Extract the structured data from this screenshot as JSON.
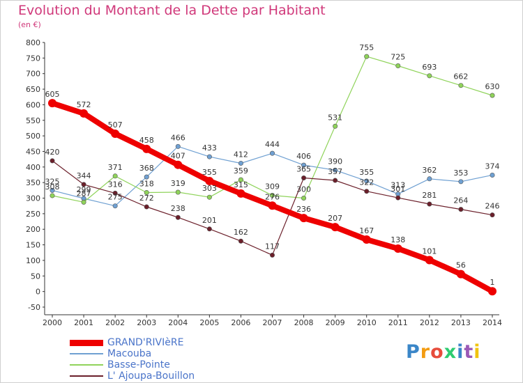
{
  "title": "Evolution du Montant de la Dette par Habitant",
  "unit_label": "(en €)",
  "logo": {
    "text": "Proxiti",
    "colors": [
      "#3a86c8",
      "#f39c12",
      "#e74c3c",
      "#2ecc71",
      "#3a86c8",
      "#9b59b6",
      "#f1c40f"
    ]
  },
  "chart_data": {
    "type": "line",
    "title": "Evolution du Montant de la Dette par Habitant",
    "ylabel": "(en €)",
    "xlabel": "",
    "x": [
      "2000",
      "2001",
      "2002",
      "2003",
      "2004",
      "2005",
      "2006",
      "2007",
      "2008",
      "2009",
      "2010",
      "2011",
      "2012",
      "2013",
      "2014"
    ],
    "ylim": [
      -50,
      800
    ],
    "yticks": [
      -50,
      0,
      50,
      100,
      150,
      200,
      250,
      300,
      350,
      400,
      450,
      500,
      550,
      600,
      650,
      700,
      750,
      800
    ],
    "grid": false,
    "legend_position": "bottom-left",
    "series": [
      {
        "name": "GRAND'RIVIèRE",
        "color": "#ee0000",
        "values": [
          605,
          572,
          507,
          458,
          407,
          355,
          315,
          276,
          236,
          207,
          167,
          138,
          101,
          56,
          1
        ]
      },
      {
        "name": "Macouba",
        "color": "#6fa0d2",
        "values": [
          325,
          299,
          275,
          368,
          466,
          433,
          412,
          444,
          406,
          390,
          355,
          313,
          362,
          353,
          374
        ]
      },
      {
        "name": "Basse-Pointe",
        "color": "#8fd35a",
        "values": [
          308,
          287,
          371,
          318,
          319,
          303,
          359,
          309,
          300,
          531,
          755,
          725,
          693,
          662,
          630
        ]
      },
      {
        "name": "L' Ajoupa-Bouillon",
        "color": "#6b1f2a",
        "values": [
          420,
          344,
          316,
          272,
          238,
          201,
          162,
          117,
          365,
          357,
          322,
          301,
          281,
          264,
          246
        ]
      }
    ],
    "data_labels": [
      [
        "605",
        "572",
        "507",
        "458",
        "407",
        "355",
        "315",
        "276",
        "236",
        "207",
        "167",
        "138",
        "101",
        "56",
        "1"
      ],
      [
        "325",
        "299",
        "275",
        "368",
        "466",
        "433",
        "412",
        "444",
        "406",
        "390",
        "355",
        "313",
        "362",
        "353",
        "374"
      ],
      [
        "308",
        "287",
        "371",
        "318",
        "319",
        "303",
        "359",
        "309",
        "300",
        "531",
        "755",
        "725",
        "693",
        "662",
        "630"
      ],
      [
        "420",
        "344",
        "316",
        "272",
        "238",
        "201",
        "162",
        "117",
        "365",
        "357",
        "322",
        "301",
        "281",
        "264",
        "246"
      ]
    ]
  }
}
